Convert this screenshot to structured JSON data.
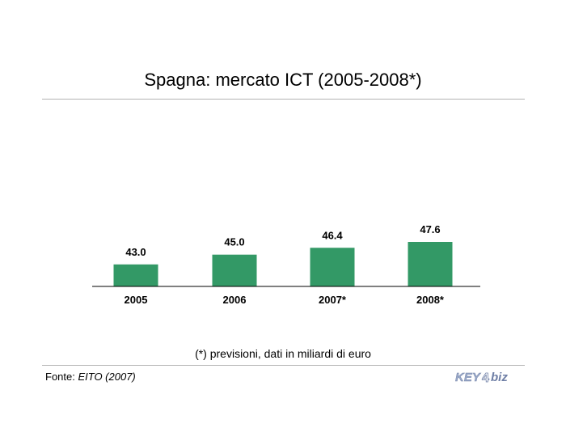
{
  "page": {
    "title": "Spagna: mercato ICT (2005-2008*)",
    "note": "(*) previsioni, dati in miliardi di euro",
    "source_label": "Fonte: ",
    "source_name": "EITO (2007)",
    "logo_text": "KEY4biz"
  },
  "colors": {
    "bar": "#339966",
    "axis": "#000000",
    "rule": "#b3b3b3",
    "logo_blue": "#9aa9c8"
  },
  "chart_data": {
    "type": "bar",
    "categories": [
      "2005",
      "2006",
      "2007*",
      "2008*"
    ],
    "values": [
      43.0,
      45.0,
      46.4,
      47.6
    ],
    "value_labels": [
      "43.0",
      "45.0",
      "46.4",
      "47.6"
    ],
    "title": "Spagna: mercato ICT (2005-2008*)",
    "xlabel": "",
    "ylabel": "",
    "ylim": [
      0,
      47.6
    ],
    "grid": false,
    "legend": "none"
  }
}
